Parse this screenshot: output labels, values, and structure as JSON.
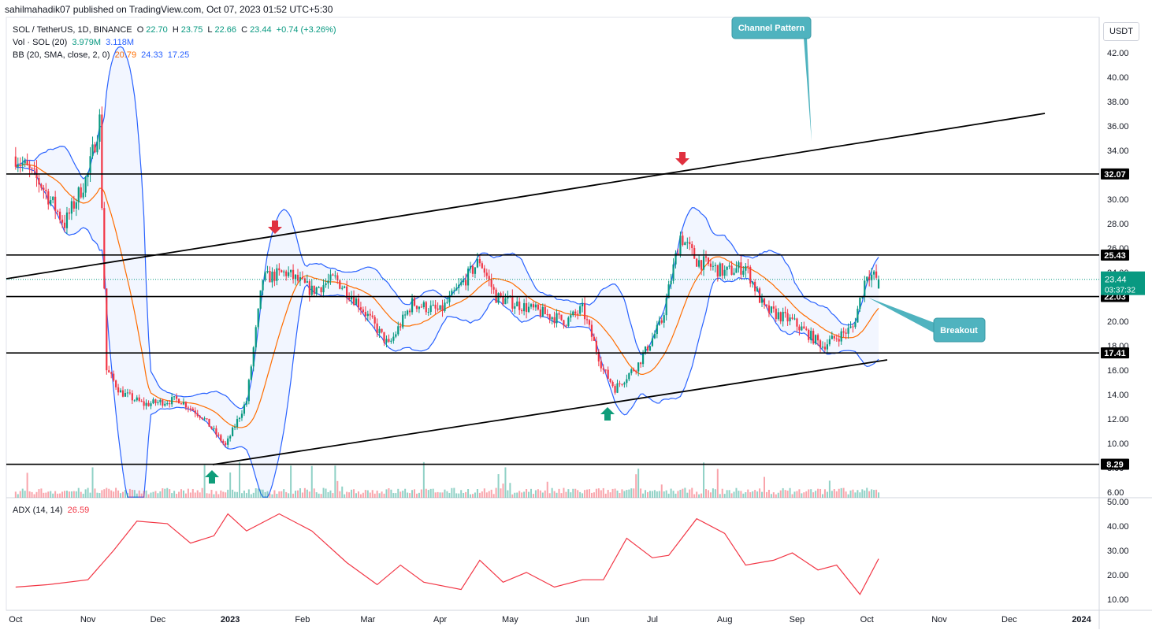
{
  "header": {
    "attribution": "sahilmahadik07 published on TradingView.com, Oct 07, 2023 01:52 UTC+5:30",
    "symbol_line": "SOL / TetherUS, 1D, BINANCE",
    "ohlc": {
      "o_label": "O",
      "o": "22.70",
      "h_label": "H",
      "h": "23.75",
      "l_label": "L",
      "l": "22.66",
      "c_label": "C",
      "c": "23.44",
      "change": "+0.74 (+3.26%)"
    },
    "vol_label": "Vol · SOL (20)",
    "vol_value": "3.979M",
    "vol_ma": "3.118M",
    "bb_label": "BB (20, SMA, close, 2, 0)",
    "bb_basis": "20.79",
    "bb_upper": "24.33",
    "bb_lower": "17.25",
    "adx_label": "ADX (14, 14)",
    "adx_value": "26.59",
    "currency_button": "USDT"
  },
  "colors": {
    "up": "#089981",
    "down": "#f23645",
    "bb_band": "#2962ff",
    "bb_basis": "#ff6d00",
    "adx": "#f23645",
    "annotation": "#4fb3bf",
    "level_line": "#000000"
  },
  "chart_data": [
    {
      "type": "candlestick",
      "title": "SOL / TetherUS, 1D, BINANCE",
      "ylim": [
        5.5,
        44.5
      ],
      "y_ticks": [
        "42.00",
        "40.00",
        "38.00",
        "36.00",
        "34.00",
        "32.00",
        "30.00",
        "28.00",
        "26.00",
        "24.00",
        "22.00",
        "20.00",
        "18.00",
        "16.00",
        "14.00",
        "12.00",
        "10.00",
        "8.00",
        "6.00"
      ],
      "x_ticks": [
        "Oct",
        "Nov",
        "Dec",
        "2023",
        "Feb",
        "Mar",
        "Apr",
        "May",
        "Jun",
        "Jul",
        "Aug",
        "Sep",
        "Oct",
        "Nov",
        "Dec",
        "2024"
      ],
      "horizontal_levels": [
        32.07,
        25.43,
        22.03,
        17.41,
        8.29
      ],
      "level_labels": [
        "32.07",
        "25.43",
        "22.03",
        "17.41",
        "8.29"
      ],
      "last_price": "23.44",
      "countdown": "03:37:32",
      "approx_close_path": [
        {
          "date": "2022-10-01",
          "close": 33.5
        },
        {
          "date": "2022-10-12",
          "close": 31.2
        },
        {
          "date": "2022-10-22",
          "close": 28.0
        },
        {
          "date": "2022-11-01",
          "close": 32.0
        },
        {
          "date": "2022-11-06",
          "close": 36.5
        },
        {
          "date": "2022-11-09",
          "close": 16.0
        },
        {
          "date": "2022-11-15",
          "close": 14.2
        },
        {
          "date": "2022-11-25",
          "close": 13.2
        },
        {
          "date": "2022-12-10",
          "close": 13.6
        },
        {
          "date": "2022-12-20",
          "close": 12.2
        },
        {
          "date": "2022-12-30",
          "close": 9.8
        },
        {
          "date": "2023-01-08",
          "close": 13.5
        },
        {
          "date": "2023-01-15",
          "close": 23.5
        },
        {
          "date": "2023-01-25",
          "close": 24.0
        },
        {
          "date": "2023-02-05",
          "close": 22.5
        },
        {
          "date": "2023-02-15",
          "close": 23.5
        },
        {
          "date": "2023-02-25",
          "close": 21.5
        },
        {
          "date": "2023-03-10",
          "close": 18.0
        },
        {
          "date": "2023-03-20",
          "close": 21.5
        },
        {
          "date": "2023-04-01",
          "close": 20.8
        },
        {
          "date": "2023-04-10",
          "close": 23.0
        },
        {
          "date": "2023-04-18",
          "close": 25.0
        },
        {
          "date": "2023-04-25",
          "close": 22.0
        },
        {
          "date": "2023-05-10",
          "close": 21.0
        },
        {
          "date": "2023-05-25",
          "close": 20.0
        },
        {
          "date": "2023-06-01",
          "close": 21.0
        },
        {
          "date": "2023-06-10",
          "close": 16.0
        },
        {
          "date": "2023-06-15",
          "close": 14.5
        },
        {
          "date": "2023-06-25",
          "close": 16.5
        },
        {
          "date": "2023-07-05",
          "close": 20.0
        },
        {
          "date": "2023-07-13",
          "close": 27.0
        },
        {
          "date": "2023-07-20",
          "close": 25.0
        },
        {
          "date": "2023-08-01",
          "close": 24.0
        },
        {
          "date": "2023-08-10",
          "close": 24.5
        },
        {
          "date": "2023-08-18",
          "close": 21.0
        },
        {
          "date": "2023-08-30",
          "close": 20.0
        },
        {
          "date": "2023-09-12",
          "close": 18.0
        },
        {
          "date": "2023-09-25",
          "close": 19.5
        },
        {
          "date": "2023-10-01",
          "close": 24.0
        },
        {
          "date": "2023-10-06",
          "close": 23.44
        }
      ],
      "annotations": [
        "Channel Pattern",
        "Breakout"
      ]
    },
    {
      "type": "line",
      "title": "ADX (14, 14)",
      "ylim": [
        5,
        52
      ],
      "y_ticks": [
        "50.00",
        "40.00",
        "30.00",
        "20.00",
        "10.00"
      ],
      "series": [
        {
          "name": "ADX",
          "values": [
            {
              "date": "2022-10-01",
              "adx": 15
            },
            {
              "date": "2022-10-15",
              "adx": 16
            },
            {
              "date": "2022-11-01",
              "adx": 18
            },
            {
              "date": "2022-11-12",
              "adx": 30
            },
            {
              "date": "2022-11-22",
              "adx": 42
            },
            {
              "date": "2022-12-05",
              "adx": 41
            },
            {
              "date": "2022-12-15",
              "adx": 33
            },
            {
              "date": "2022-12-25",
              "adx": 36
            },
            {
              "date": "2022-12-31",
              "adx": 45
            },
            {
              "date": "2023-01-08",
              "adx": 38
            },
            {
              "date": "2023-01-22",
              "adx": 45
            },
            {
              "date": "2023-02-05",
              "adx": 38
            },
            {
              "date": "2023-02-20",
              "adx": 25
            },
            {
              "date": "2023-03-05",
              "adx": 16
            },
            {
              "date": "2023-03-15",
              "adx": 24
            },
            {
              "date": "2023-03-25",
              "adx": 17
            },
            {
              "date": "2023-04-10",
              "adx": 14
            },
            {
              "date": "2023-04-18",
              "adx": 26
            },
            {
              "date": "2023-04-28",
              "adx": 17
            },
            {
              "date": "2023-05-08",
              "adx": 21
            },
            {
              "date": "2023-05-20",
              "adx": 15
            },
            {
              "date": "2023-06-01",
              "adx": 18
            },
            {
              "date": "2023-06-10",
              "adx": 18
            },
            {
              "date": "2023-06-20",
              "adx": 35
            },
            {
              "date": "2023-07-01",
              "adx": 27
            },
            {
              "date": "2023-07-08",
              "adx": 28
            },
            {
              "date": "2023-07-20",
              "adx": 43
            },
            {
              "date": "2023-08-01",
              "adx": 37
            },
            {
              "date": "2023-08-10",
              "adx": 24
            },
            {
              "date": "2023-08-22",
              "adx": 26
            },
            {
              "date": "2023-08-30",
              "adx": 29
            },
            {
              "date": "2023-09-10",
              "adx": 22
            },
            {
              "date": "2023-09-18",
              "adx": 24
            },
            {
              "date": "2023-09-28",
              "adx": 12
            },
            {
              "date": "2023-10-06",
              "adx": 26.59
            }
          ]
        }
      ],
      "last_value": "26.59"
    }
  ]
}
